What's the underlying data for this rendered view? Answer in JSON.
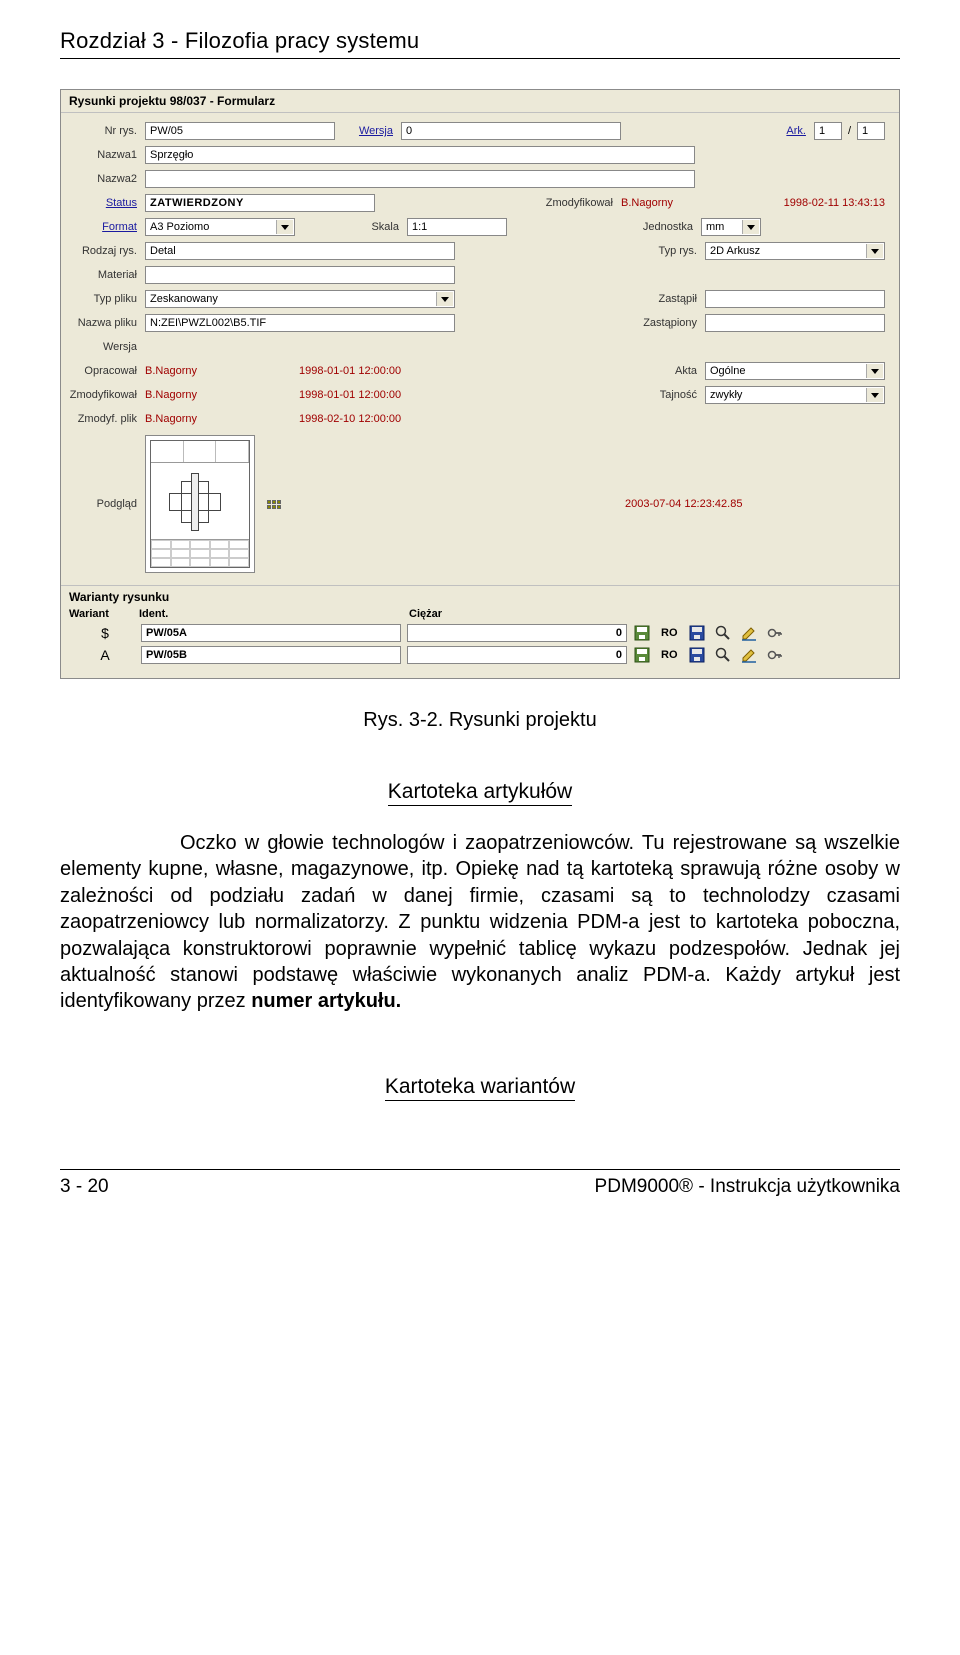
{
  "chapter_header": "Rozdział 3 - Filozofia pracy systemu",
  "window": {
    "title": "Rysunki projektu 98/037 - Formularz",
    "labels": {
      "nr_rys": "Nr rys.",
      "wersja": "Wersja",
      "ark": "Ark.",
      "slash": "/",
      "nazwa1": "Nazwa1",
      "nazwa2": "Nazwa2",
      "status": "Status",
      "zmodyfikowal_r": "Zmodyfikował",
      "format": "Format",
      "skala": "Skala",
      "jednostka": "Jednostka",
      "rodzaj": "Rodzaj rys.",
      "typ_rys": "Typ rys.",
      "material": "Materiał",
      "typ_pliku": "Typ pliku",
      "zastapil": "Zastąpił",
      "nazwa_pliku": "Nazwa pliku",
      "zastapiony": "Zastąpiony",
      "wersja2": "Wersja",
      "opracowal": "Opracował",
      "akta": "Akta",
      "zmodyfikowal": "Zmodyfikował",
      "tajnosc": "Tajność",
      "zmodyf_plik": "Zmodyf. plik",
      "podglad": "Podgląd"
    },
    "values": {
      "nr_rys": "PW/05",
      "wersja": "0",
      "ark1": "1",
      "ark2": "1",
      "nazwa1": "Sprzęgło",
      "nazwa2": "",
      "status": "ZATWIERDZONY",
      "zmod_user": "B.Nagorny",
      "zmod_date": "1998-02-11 13:43:13",
      "format": "A3 Poziomo",
      "skala": "1:1",
      "jednostka": "mm",
      "rodzaj": "Detal",
      "typ_rys": "2D Arkusz",
      "material": "",
      "typ_pliku": "Zeskanowany",
      "zastapil": "",
      "nazwa_pliku": "N:ZEI\\PWZL002\\B5.TIF",
      "zastapiony": "",
      "wersja2": "",
      "opracowal_u": "B.Nagorny",
      "opracowal_d": "1998-01-01 12:00:00",
      "akta": "Ogólne",
      "zmodyf_u": "B.Nagorny",
      "zmodyf_d": "1998-01-01 12:00:00",
      "tajnosc": "zwykły",
      "zmodplik_u": "B.Nagorny",
      "zmodplik_d": "1998-02-10 12:00:00",
      "preview_date": "2003-07-04 12:23:42.85"
    },
    "variants_section": {
      "title": "Warianty rysunku",
      "cols": {
        "wariant": "Wariant",
        "ident": "Ident.",
        "ciezar": "Ciężar"
      },
      "rows": [
        {
          "wariant": "$",
          "ident": "PW/05A",
          "ciezar": "0",
          "ro": "RO"
        },
        {
          "wariant": "A",
          "ident": "PW/05B",
          "ciezar": "0",
          "ro": "RO"
        }
      ]
    }
  },
  "caption": "Rys. 3-2. Rysunki projektu",
  "section1_title": "Kartoteka artykułów",
  "paragraph1": "Oczko w głowie technologów i zaopatrzeniowców. Tu rejestrowane są wszelkie elementy kupne, własne, magazynowe, itp. Opiekę nad tą kartoteką sprawują różne osoby w zależności od podziału zadań w danej firmie, czasami są to technolodzy czasami zaopatrzeniowcy lub normalizatorzy. Z punktu widzenia PDM-a jest to kartoteka poboczna, pozwalająca konstruktorowi poprawnie wypełnić tablicę wykazu podzespołów. Jednak jej aktualność stanowi podstawę właściwie wykonanych analiz PDM-a. Każdy artykuł jest identyfikowany przez ",
  "paragraph1_bold": "numer artykułu.",
  "section2_title": "Kartoteka wariantów",
  "footer": {
    "left": "3 - 20",
    "right": "PDM9000® - Instrukcja użytkownika"
  },
  "colors": {
    "win_bg": "#ece9d8",
    "red": "#a00000",
    "link": "#1a1aa0"
  }
}
